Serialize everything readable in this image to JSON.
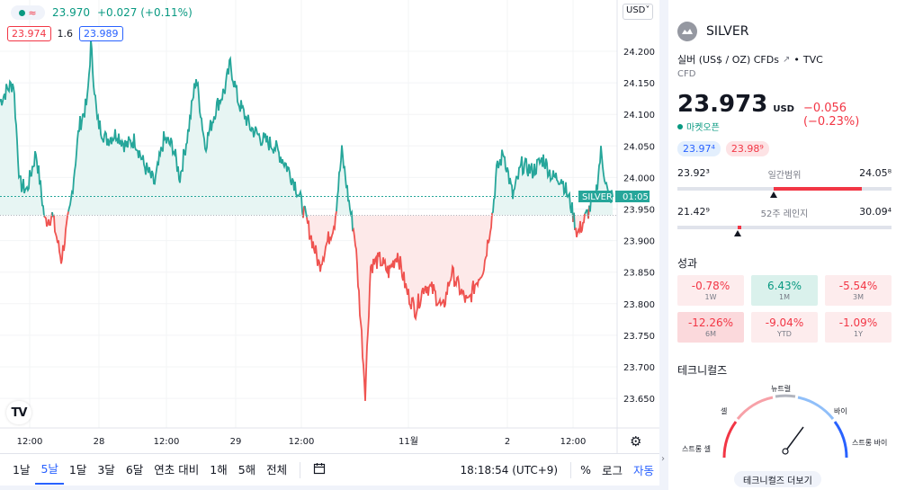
{
  "header": {
    "last_price": "23.970",
    "change": "+0.027 (+0.11%)",
    "bid": "23.974",
    "spread": "1.6",
    "ask": "23.989",
    "currency": "USD˅"
  },
  "chart": {
    "symbol_tag": "SILVER",
    "countdown": "01:05",
    "y_ticks": [
      "24.200",
      "24.150",
      "24.100",
      "24.050",
      "24.000",
      "23.950",
      "23.900",
      "23.850",
      "23.800",
      "23.750",
      "23.700",
      "23.650"
    ],
    "x_ticks": [
      "12:00",
      "28",
      "12:00",
      "29",
      "12:00",
      "11월",
      "2",
      "12:00"
    ],
    "colors": {
      "up": "#26a69a",
      "down": "#ef5350",
      "up_fill": "#e7f5f3",
      "down_fill": "#fde9e9"
    }
  },
  "toolbar": {
    "ranges": [
      "1날",
      "5날",
      "1달",
      "3달",
      "6달",
      "연초 대비",
      "1해",
      "5해",
      "전체"
    ],
    "active_range": "5날",
    "time": "18:18:54 (UTC+9)",
    "percent": "%",
    "log": "로그",
    "auto": "자동"
  },
  "side": {
    "name": "SILVER",
    "description": "실버 (US$ / OZ) CFDs",
    "exchange": "TVC",
    "type": "CFD",
    "price": "23.973",
    "price_currency": "USD",
    "price_change": "−0.056 (−0.23%)",
    "market_status": "마켓오픈",
    "bid_pill": "23.97⁴",
    "ask_pill": "23.98⁹",
    "day_range": {
      "low": "23.92³",
      "label": "일간범위",
      "high": "24.05⁸",
      "position": 0.45
    },
    "week52_range": {
      "low": "21.42⁹",
      "label": "52주 레인지",
      "high": "30.09⁴",
      "position": 0.28
    },
    "performance_title": "성과",
    "performance": [
      {
        "value": "-0.78%",
        "label": "1W",
        "tone": "neg-light"
      },
      {
        "value": "6.43%",
        "label": "1M",
        "tone": "pos"
      },
      {
        "value": "-5.54%",
        "label": "3M",
        "tone": "neg-light"
      },
      {
        "value": "-12.26%",
        "label": "6M",
        "tone": "neg-strong"
      },
      {
        "value": "-9.04%",
        "label": "YTD",
        "tone": "neg-light"
      },
      {
        "value": "-1.09%",
        "label": "1Y",
        "tone": "neg-light"
      }
    ],
    "technicals_title": "테크니컬즈",
    "gauge": {
      "strong_sell": "스트롱 셀",
      "sell": "셀",
      "neutral": "뉴트럴",
      "buy": "바이",
      "strong_buy": "스트롱 바이"
    },
    "technicals_button": "테크니컬즈 더보기"
  }
}
